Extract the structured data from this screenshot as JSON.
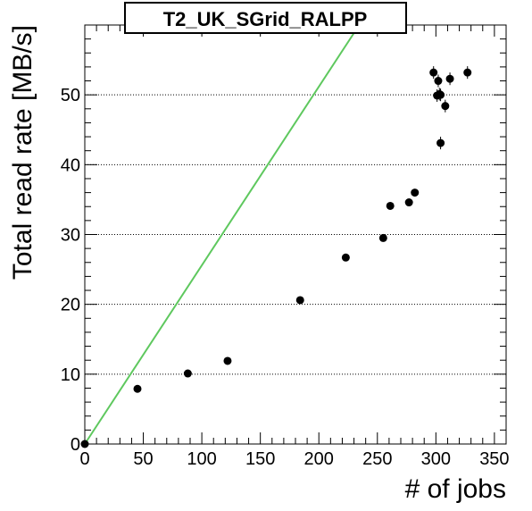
{
  "chart_data": {
    "type": "scatter",
    "title": "T2_UK_SGrid_RALPP",
    "xlabel": "# of jobs",
    "ylabel": "Total read rate [MB/s]",
    "xlim": [
      0,
      360
    ],
    "ylim": [
      0,
      60
    ],
    "x_ticks": [
      0,
      50,
      100,
      150,
      200,
      250,
      300,
      350
    ],
    "y_ticks": [
      0,
      10,
      20,
      30,
      40,
      50
    ],
    "grid": "horizontal-dotted",
    "legend": "none",
    "colors": {
      "points": "#000000",
      "reference_line": "#5ec85e",
      "grid": "#000000"
    },
    "points": [
      {
        "x": 0,
        "y": 0,
        "yerr": 0.3
      },
      {
        "x": 45,
        "y": 7.9,
        "yerr": 0.3
      },
      {
        "x": 88,
        "y": 10.1,
        "yerr": 0.3
      },
      {
        "x": 122,
        "y": 11.9,
        "yerr": 0.3
      },
      {
        "x": 184,
        "y": 20.6,
        "yerr": 0.4
      },
      {
        "x": 223,
        "y": 26.7,
        "yerr": 0.4
      },
      {
        "x": 255,
        "y": 29.5,
        "yerr": 0.4
      },
      {
        "x": 261,
        "y": 34.1,
        "yerr": 0.5
      },
      {
        "x": 277,
        "y": 34.6,
        "yerr": 0.5
      },
      {
        "x": 282,
        "y": 36.0,
        "yerr": 0.5
      },
      {
        "x": 298,
        "y": 53.2,
        "yerr": 0.9
      },
      {
        "x": 301,
        "y": 49.9,
        "yerr": 0.9
      },
      {
        "x": 302,
        "y": 52.0,
        "yerr": 0.9
      },
      {
        "x": 303,
        "y": 50.1,
        "yerr": 0.9
      },
      {
        "x": 304,
        "y": 50.0,
        "yerr": 0.9
      },
      {
        "x": 304,
        "y": 43.1,
        "yerr": 0.9
      },
      {
        "x": 308,
        "y": 48.4,
        "yerr": 0.9
      },
      {
        "x": 312,
        "y": 52.3,
        "yerr": 0.9
      },
      {
        "x": 327,
        "y": 53.2,
        "yerr": 0.9
      }
    ],
    "reference_line": {
      "x": [
        0,
        234.5
      ],
      "y": [
        0,
        60
      ]
    }
  }
}
